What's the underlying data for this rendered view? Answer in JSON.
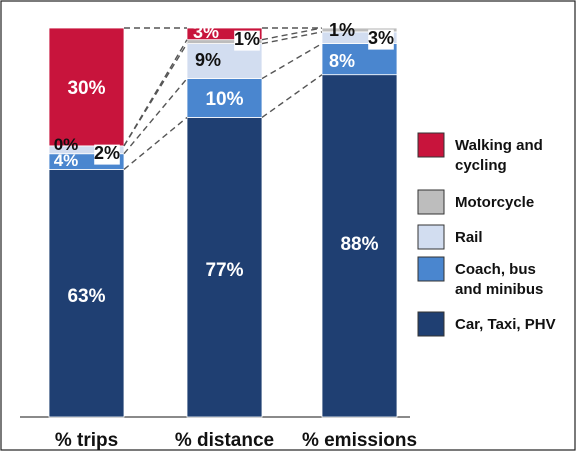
{
  "chart_data": {
    "type": "bar",
    "stacked": true,
    "normalized": true,
    "categories": [
      "% trips",
      "% distance",
      "% emissions"
    ],
    "series": [
      {
        "name": "Car, Taxi, PHV",
        "values": [
          63,
          77,
          88
        ],
        "labels": [
          "63%",
          "77%",
          "88%"
        ]
      },
      {
        "name": "Coach, bus and minibus",
        "values": [
          4,
          10,
          8
        ],
        "labels": [
          "4%",
          "10%",
          "8%"
        ]
      },
      {
        "name": "Rail",
        "values": [
          2,
          9,
          3
        ],
        "labels": [
          "2%",
          "9%",
          "3%"
        ]
      },
      {
        "name": "Motorcycle",
        "values": [
          0,
          1,
          1
        ],
        "labels": [
          "0%",
          "1%",
          "1%"
        ]
      },
      {
        "name": "Walking and cycling",
        "values": [
          30,
          3,
          0
        ],
        "labels": [
          "30%",
          "3%",
          ""
        ]
      }
    ],
    "legend": {
      "position": "right",
      "entries": [
        {
          "name": "Walking and cycling",
          "lines": [
            "Walking and",
            "cycling"
          ]
        },
        {
          "name": "Motorcycle",
          "lines": [
            "Motorcycle"
          ]
        },
        {
          "name": "Rail",
          "lines": [
            "Rail"
          ]
        },
        {
          "name": "Coach, bus and minibus",
          "lines": [
            "Coach, bus",
            "and minibus"
          ]
        },
        {
          "name": "Car, Taxi, PHV",
          "lines": [
            "Car, Taxi, PHV"
          ]
        }
      ]
    },
    "connectors": "dashed",
    "grid": false,
    "colors": {
      "Car, Taxi, PHV": "#1f3f72",
      "Coach, bus and minibus": "#4a86cf",
      "Rail": "#d2ddf0",
      "Motorcycle": "#bdbdbd",
      "Walking and cycling": "#c8143c"
    }
  }
}
